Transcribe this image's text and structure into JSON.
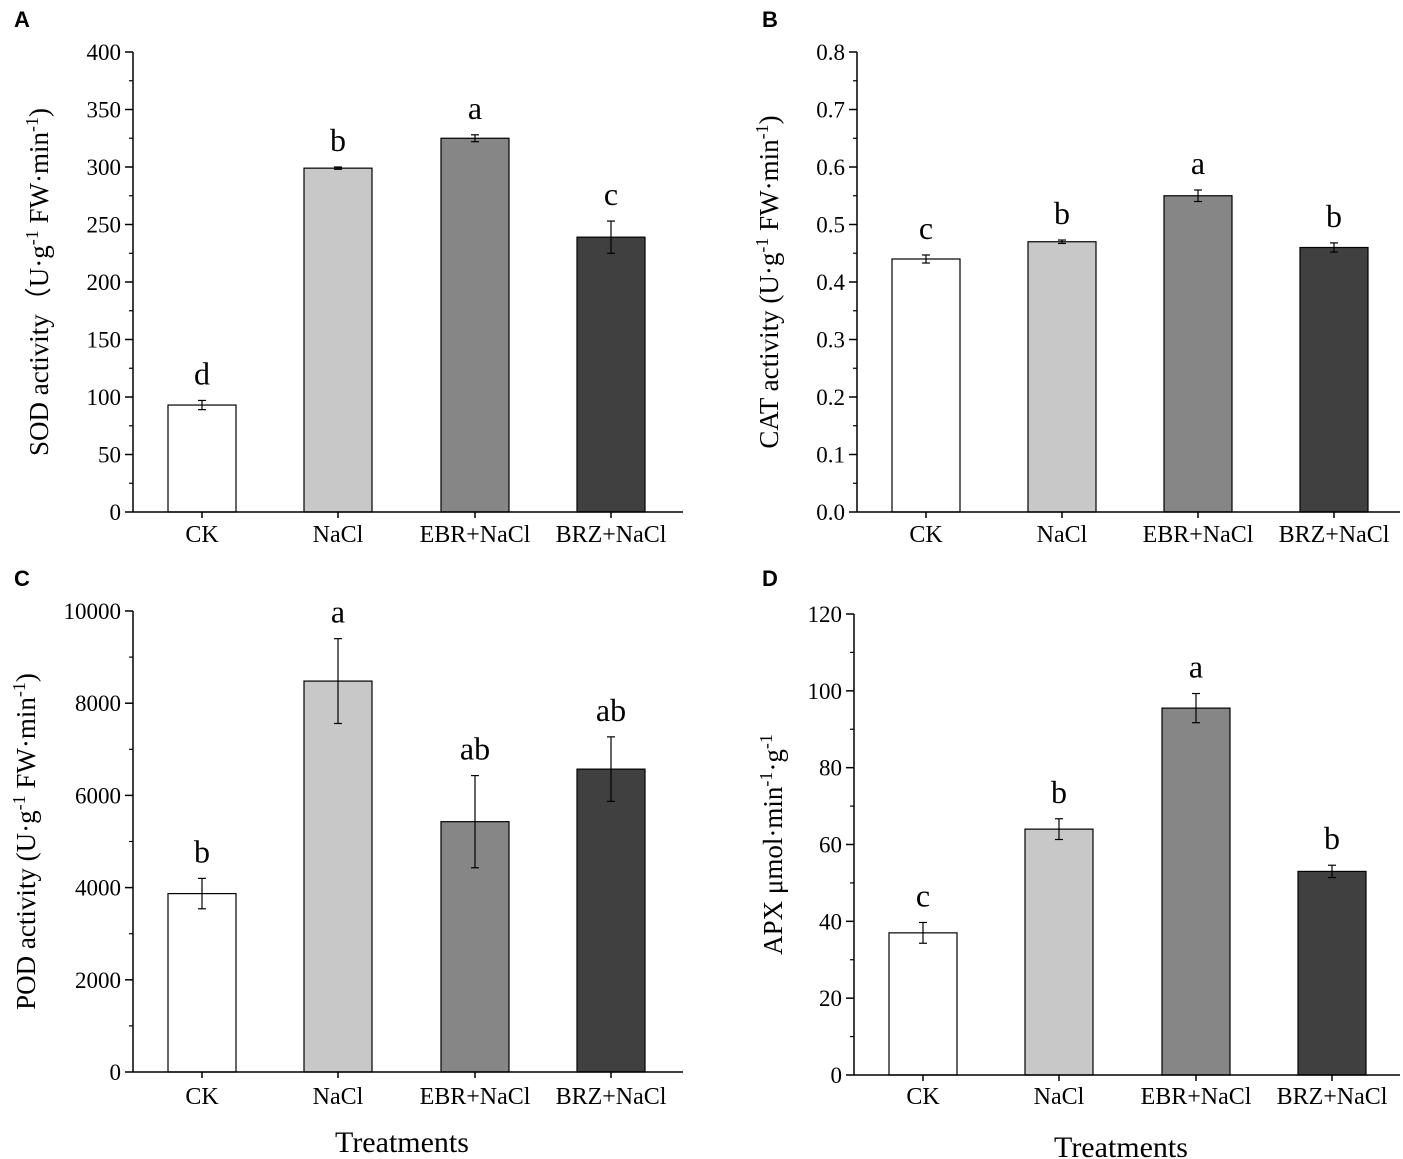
{
  "colors": {
    "CK": "#ffffff",
    "NaCl": "#c8c8c8",
    "EBR+NaCl": "#868686",
    "BRZ+NaCl": "#404040",
    "axis": "#000000"
  },
  "chart_data": [
    {
      "type": "bar",
      "panel_label": "A",
      "categories": [
        "CK",
        "NaCl",
        "EBR+NaCl",
        "BRZ+NaCl"
      ],
      "values": [
        93,
        299,
        325,
        239
      ],
      "errors": [
        4,
        1,
        3,
        14
      ],
      "letters": [
        "d",
        "b",
        "a",
        "c"
      ],
      "ylabel": {
        "pre": "SOD activity（U·g",
        "sup1": "-1",
        "mid": " FW·min",
        "sup2": "-1",
        "post": ")"
      },
      "xlabel": "",
      "ylim": [
        0,
        400
      ],
      "yticks": [
        "0",
        "50",
        "100",
        "150",
        "200",
        "250",
        "300",
        "350",
        "400"
      ]
    },
    {
      "type": "bar",
      "panel_label": "B",
      "categories": [
        "CK",
        "NaCl",
        "EBR+NaCl",
        "BRZ+NaCl"
      ],
      "values": [
        0.44,
        0.47,
        0.55,
        0.46
      ],
      "errors": [
        0.007,
        0.003,
        0.01,
        0.008
      ],
      "letters": [
        "c",
        "b",
        "a",
        "b"
      ],
      "ylabel": {
        "pre": "CAT activity (U·g",
        "sup1": "-1",
        "mid": " FW·min",
        "sup2": "-1",
        "post": ")"
      },
      "xlabel": "",
      "ylim": [
        0,
        0.8
      ],
      "yticks": [
        "0.0",
        "0.1",
        "0.2",
        "0.3",
        "0.4",
        "0.5",
        "0.6",
        "0.7",
        "0.8"
      ]
    },
    {
      "type": "bar",
      "panel_label": "C",
      "categories": [
        "CK",
        "NaCl",
        "EBR+NaCl",
        "BRZ+NaCl"
      ],
      "values": [
        3870,
        8480,
        5430,
        6570
      ],
      "errors": [
        330,
        920,
        1000,
        700
      ],
      "letters": [
        "b",
        "a",
        "ab",
        "ab"
      ],
      "ylabel": {
        "pre": "POD activity (U·g",
        "sup1": "-1",
        "mid": " FW·min",
        "sup2": "-1",
        "post": ")"
      },
      "xlabel": "Treatments",
      "ylim": [
        0,
        10000
      ],
      "yticks": [
        "0",
        "2000",
        "4000",
        "6000",
        "8000",
        "10000"
      ]
    },
    {
      "type": "bar",
      "panel_label": "D",
      "categories": [
        "CK",
        "NaCl",
        "EBR+NaCl",
        "BRZ+NaCl"
      ],
      "values": [
        37,
        64,
        95.5,
        53
      ],
      "errors": [
        2.7,
        2.7,
        3.8,
        1.6
      ],
      "letters": [
        "c",
        "b",
        "a",
        "b"
      ],
      "ylabel": {
        "pre": "APX μmol·min",
        "sup1": "-1",
        "mid": "·g",
        "sup2": "-1",
        "post": ""
      },
      "xlabel": "Treatments",
      "ylim": [
        0,
        120
      ],
      "yticks": [
        "0",
        "20",
        "40",
        "60",
        "80",
        "100",
        "120"
      ]
    }
  ]
}
